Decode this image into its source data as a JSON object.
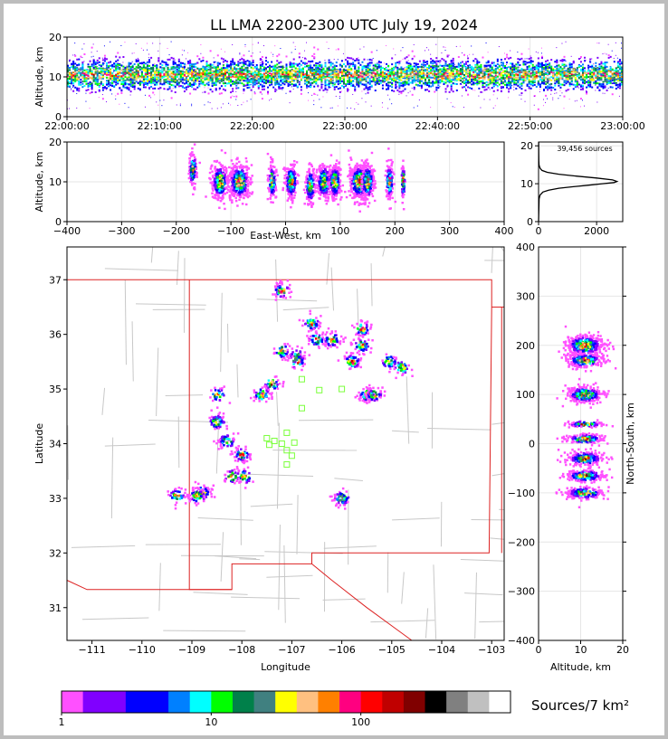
{
  "title": "LL LMA 2200-2300 UTC July 19, 2024",
  "source_count": "39,456 sources",
  "colorbar_label": "Sources/7 km²",
  "colors": {
    "colorbar": [
      "#ff50ff",
      "#8000ff",
      "#8000ff",
      "#0000ff",
      "#0000ff",
      "#0080ff",
      "#00ffff",
      "#00ff00",
      "#00804a",
      "#408080",
      "#ffff00",
      "#ffc080",
      "#ff8000",
      "#ff0080",
      "#ff0000",
      "#c00000",
      "#800000",
      "#000000",
      "#808080",
      "#c0c0c0",
      "#ffffff"
    ],
    "state_border": "#dd2222",
    "county_lines": "#c8c8c8",
    "station_markers": "#7aff3a",
    "grid": "#e6e6e6"
  },
  "chart_data": [
    {
      "panel": "time-height",
      "type": "heatmap",
      "xlabel": "",
      "ylabel": "Altitude, km",
      "x_ticks": [
        "22:00:00",
        "22:10:00",
        "22:20:00",
        "22:30:00",
        "22:40:00",
        "22:50:00",
        "23:00:00"
      ],
      "y_ticks": [
        "0",
        "10",
        "20"
      ],
      "xlim": [
        "22:00:00",
        "23:00:00"
      ],
      "ylim": [
        0,
        20
      ],
      "note_values": {
        "dense_band_altitude_km": [
          7,
          14
        ],
        "peak_altitude_km": 10.5
      }
    },
    {
      "panel": "east-west-altitude",
      "type": "heatmap",
      "xlabel": "East-West, km",
      "ylabel": "Altitude, km",
      "x_ticks": [
        "−400",
        "−300",
        "−200",
        "−100",
        "0",
        "100",
        "200",
        "300",
        "400"
      ],
      "y_ticks": [
        "0",
        "10",
        "20"
      ],
      "xlim": [
        -400,
        400
      ],
      "ylim": [
        0,
        20
      ],
      "clusters_km": [
        [
          -170,
          13,
          6
        ],
        [
          -120,
          10,
          14
        ],
        [
          -85,
          10,
          18
        ],
        [
          -25,
          10,
          6
        ],
        [
          10,
          10,
          10
        ],
        [
          45,
          9,
          8
        ],
        [
          70,
          10,
          12
        ],
        [
          90,
          10,
          10
        ],
        [
          135,
          10,
          18
        ],
        [
          150,
          10,
          10
        ],
        [
          190,
          10,
          6
        ],
        [
          215,
          10,
          3
        ]
      ]
    },
    {
      "panel": "altitude-histogram",
      "type": "line",
      "xlabel": "",
      "ylabel": "",
      "x_ticks": [
        "0",
        "2000"
      ],
      "y_ticks": [
        "0",
        "10",
        "20"
      ],
      "xlim": [
        0,
        2900
      ],
      "ylim": [
        0,
        21
      ],
      "series": [
        {
          "x": [
            0,
            20,
            50,
            150,
            350,
            700,
            1200,
            1700,
            2200,
            2600,
            2700,
            2550,
            2000,
            1300,
            700,
            300,
            120,
            60,
            30,
            15,
            8,
            5,
            3
          ],
          "y": [
            0.0,
            6.0,
            7.0,
            7.8,
            8.3,
            8.8,
            9.2,
            9.6,
            10.0,
            10.3,
            10.6,
            11.0,
            11.5,
            12.0,
            12.5,
            13.0,
            13.5,
            14.0,
            14.5,
            15.0,
            16.0,
            18.0,
            21.0
          ]
        }
      ]
    },
    {
      "panel": "plan-view",
      "type": "heatmap",
      "xlabel": "Longitude",
      "ylabel": "Latitude",
      "x_ticks": [
        "−111",
        "−110",
        "−109",
        "−108",
        "−107",
        "−106",
        "−105",
        "−104",
        "−103"
      ],
      "y_ticks": [
        "31",
        "32",
        "33",
        "34",
        "35",
        "36",
        "37"
      ],
      "xlim": [
        -111.5,
        -102.75
      ],
      "ylim": [
        30.4,
        37.6
      ],
      "storm_cells_lonlat": [
        [
          -107.2,
          36.8
        ],
        [
          -106.6,
          36.2
        ],
        [
          -106.5,
          35.9
        ],
        [
          -106.2,
          35.9
        ],
        [
          -105.6,
          36.1
        ],
        [
          -105.6,
          35.8
        ],
        [
          -105.8,
          35.5
        ],
        [
          -105.05,
          35.5
        ],
        [
          -104.8,
          35.4
        ],
        [
          -106.9,
          35.6
        ],
        [
          -106.9,
          35.5
        ],
        [
          -107.2,
          35.7
        ],
        [
          -107.4,
          35.1
        ],
        [
          -107.6,
          34.9
        ],
        [
          -105.5,
          34.9
        ],
        [
          -105.35,
          34.9
        ],
        [
          -108.0,
          33.8
        ],
        [
          -107.95,
          33.4
        ],
        [
          -108.2,
          33.4
        ],
        [
          -108.3,
          34.05
        ],
        [
          -108.5,
          34.4
        ],
        [
          -108.8,
          33.1
        ],
        [
          -108.9,
          33.05
        ],
        [
          -109.3,
          33.05
        ],
        [
          -106.0,
          33.0
        ],
        [
          -108.5,
          34.9
        ]
      ],
      "station_markers_lonlat": [
        [
          -106.8,
          35.18
        ],
        [
          -106.45,
          34.98
        ],
        [
          -106.0,
          35.0
        ],
        [
          -106.8,
          34.65
        ],
        [
          -107.1,
          34.2
        ],
        [
          -107.35,
          34.05
        ],
        [
          -107.45,
          33.98
        ],
        [
          -107.2,
          34.0
        ],
        [
          -106.95,
          34.02
        ],
        [
          -107.1,
          33.88
        ],
        [
          -107.0,
          33.78
        ],
        [
          -107.1,
          33.62
        ],
        [
          -107.5,
          34.1
        ]
      ]
    },
    {
      "panel": "altitude-north-south",
      "type": "heatmap",
      "xlabel": "Altitude, km",
      "ylabel": "North-South, km",
      "x_ticks": [
        "0",
        "10",
        "20"
      ],
      "y_ticks": [
        "−400",
        "−300",
        "−200",
        "−100",
        "0",
        "100",
        "200",
        "300",
        "400"
      ],
      "xlim": [
        0,
        20
      ],
      "ylim": [
        -400,
        400
      ],
      "clusters_km": [
        [
          11,
          200,
          18
        ],
        [
          11,
          170,
          12
        ],
        [
          11,
          100,
          14
        ],
        [
          11,
          40,
          5
        ],
        [
          11,
          10,
          8
        ],
        [
          11,
          -30,
          12
        ],
        [
          11,
          -65,
          10
        ],
        [
          11,
          -100,
          10
        ]
      ]
    },
    {
      "panel": "colorbar",
      "type": "bar",
      "x_ticks": [
        "1",
        "10",
        "100"
      ],
      "xlim": [
        1,
        1000
      ],
      "xscale": "log"
    }
  ]
}
